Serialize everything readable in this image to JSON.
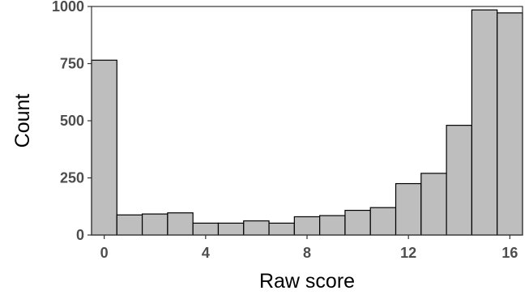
{
  "chart_data": {
    "type": "bar",
    "title": "",
    "xlabel": "Raw score",
    "ylabel": "Count",
    "x": [
      0,
      1,
      2,
      3,
      4,
      5,
      6,
      7,
      8,
      9,
      10,
      11,
      12,
      13,
      14,
      15,
      16
    ],
    "values": [
      765,
      88,
      92,
      97,
      52,
      52,
      62,
      52,
      80,
      85,
      108,
      120,
      225,
      270,
      480,
      985,
      972
    ],
    "xlim": [
      -0.5,
      16.5
    ],
    "ylim": [
      0,
      1000
    ],
    "x_ticks": [
      0,
      4,
      8,
      12,
      16
    ],
    "y_ticks": [
      0,
      250,
      500,
      750,
      1000
    ],
    "x_tick_labels": [
      "0",
      "4",
      "8",
      "12",
      "16"
    ],
    "y_tick_labels": [
      "0",
      "250",
      "500",
      "750",
      "1000"
    ],
    "grid": false,
    "legend": "none",
    "bar_fill": "#bebebe",
    "bar_stroke": "#000000"
  }
}
